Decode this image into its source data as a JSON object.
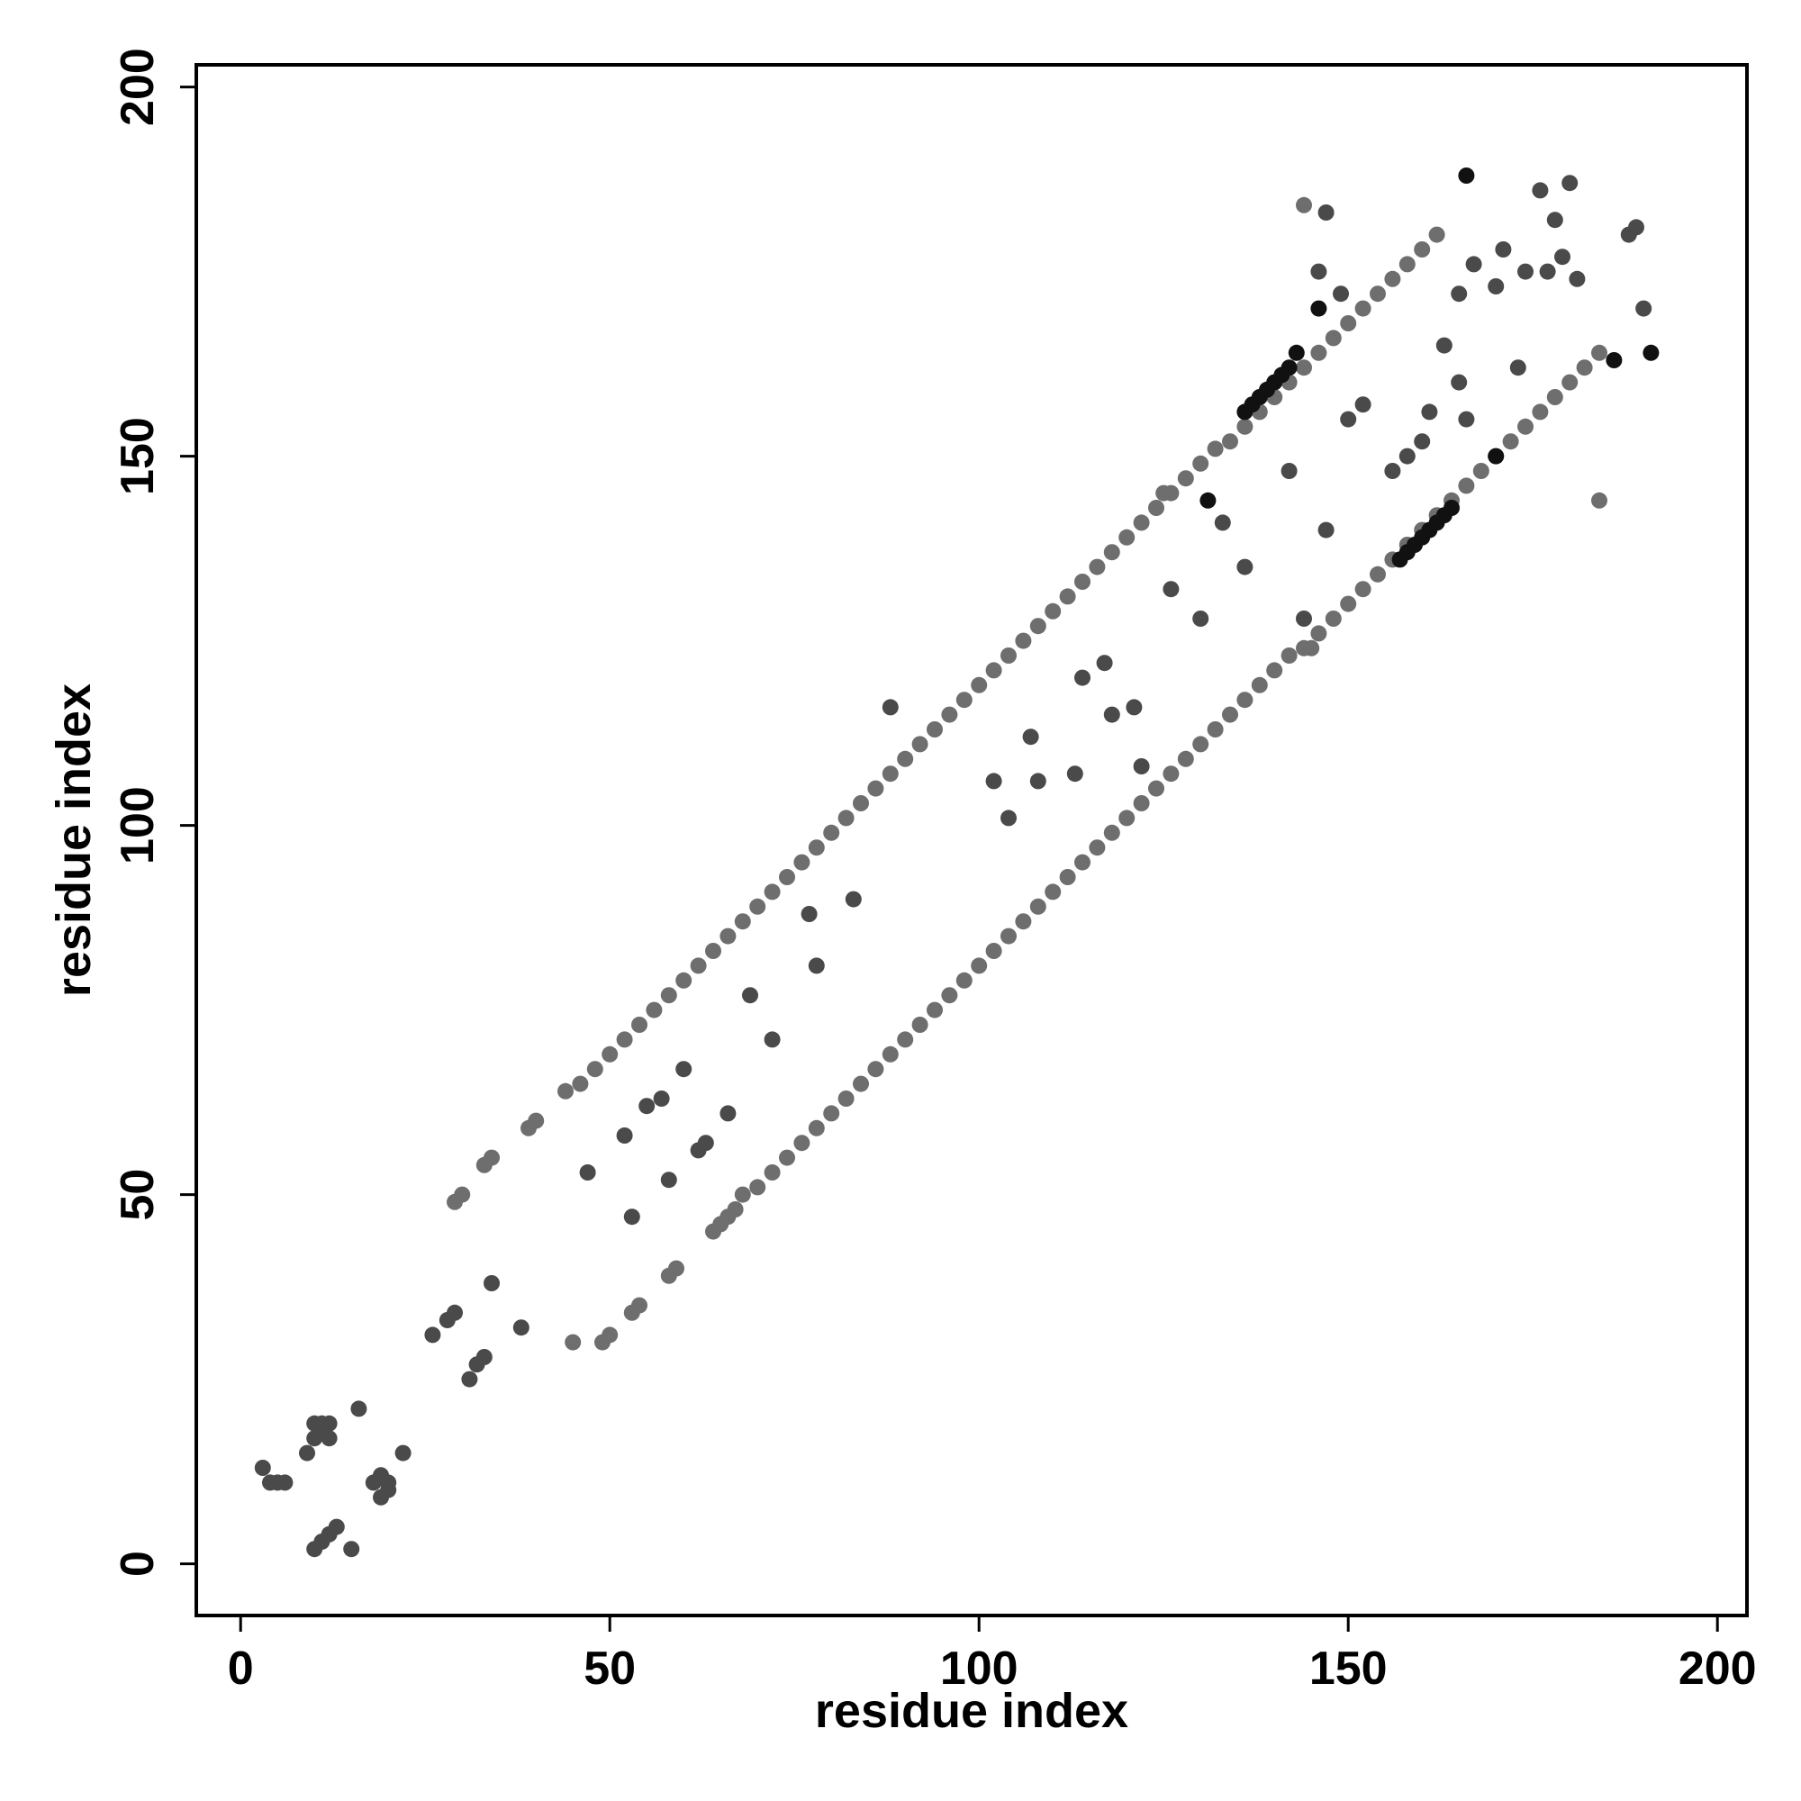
{
  "chart_data": {
    "type": "scatter",
    "title": "",
    "xlabel": "residue index",
    "ylabel": "residue index",
    "xlim": [
      -6,
      204
    ],
    "ylim": [
      -7,
      203
    ],
    "xticks": [
      0,
      50,
      100,
      150,
      200
    ],
    "yticks": [
      0,
      50,
      100,
      150,
      200
    ],
    "grid": false,
    "legend": "none",
    "colors": {
      "light": "#6e6e6e",
      "mid": "#4a4a4a",
      "dark": "#111111"
    },
    "series": [
      {
        "tone": "light",
        "x": [
          44,
          46,
          48,
          50,
          52,
          54,
          56,
          58,
          60,
          62,
          64,
          66,
          68,
          70,
          72,
          74,
          76,
          78,
          80,
          82,
          84,
          86,
          88,
          90,
          92,
          94,
          96,
          98,
          100,
          102,
          104,
          106,
          108,
          110,
          112,
          114,
          116,
          118,
          120,
          122,
          124,
          126,
          128,
          130,
          132,
          134,
          136,
          138,
          140,
          142,
          144,
          146,
          148,
          150,
          152,
          154,
          156,
          158,
          160,
          162,
          29,
          30,
          33,
          34,
          39,
          40,
          45,
          49,
          50,
          53,
          54,
          58,
          59,
          64,
          65,
          66,
          67,
          68,
          70,
          72,
          74,
          76,
          78,
          80,
          82,
          84,
          86,
          88,
          90,
          92,
          94,
          96,
          98,
          100,
          102,
          104,
          106,
          108,
          110,
          112,
          114,
          116,
          118,
          120,
          122,
          124,
          126,
          128,
          130,
          132,
          134,
          136,
          138,
          140,
          142,
          144,
          146,
          148,
          150,
          152,
          154,
          156,
          158,
          160,
          162,
          164,
          166,
          168,
          170,
          172,
          174,
          176,
          178,
          180,
          182,
          184,
          144,
          184,
          145,
          125
        ],
        "y": [
          64,
          65,
          67,
          69,
          71,
          73,
          75,
          77,
          79,
          81,
          83,
          85,
          87,
          89,
          91,
          93,
          95,
          97,
          99,
          101,
          103,
          105,
          107,
          109,
          111,
          113,
          115,
          117,
          119,
          121,
          123,
          125,
          127,
          129,
          131,
          133,
          135,
          137,
          139,
          141,
          143,
          145,
          147,
          149,
          151,
          152,
          154,
          156,
          158,
          160,
          162,
          164,
          166,
          168,
          170,
          172,
          174,
          176,
          178,
          180,
          49,
          50,
          54,
          55,
          59,
          60,
          30,
          30,
          31,
          34,
          35,
          39,
          40,
          45,
          46,
          47,
          48,
          50,
          51,
          53,
          55,
          57,
          59,
          61,
          63,
          65,
          67,
          69,
          71,
          73,
          75,
          77,
          79,
          81,
          83,
          85,
          87,
          89,
          91,
          93,
          95,
          97,
          99,
          101,
          103,
          105,
          107,
          109,
          111,
          113,
          115,
          117,
          119,
          121,
          123,
          124,
          126,
          128,
          130,
          132,
          134,
          136,
          138,
          140,
          142,
          144,
          146,
          148,
          150,
          152,
          154,
          156,
          158,
          160,
          162,
          164,
          184,
          144,
          124,
          145
        ]
      },
      {
        "tone": "mid",
        "x": [
          3,
          4,
          5,
          6,
          10,
          11,
          12,
          10,
          9,
          11,
          12,
          16,
          18,
          19,
          20,
          19,
          20,
          22,
          10,
          11,
          12,
          13,
          15,
          26,
          28,
          29,
          31,
          32,
          33,
          34,
          38,
          47,
          52,
          53,
          55,
          57,
          58,
          60,
          62,
          63,
          66,
          69,
          72,
          77,
          78,
          83,
          88,
          102,
          104,
          107,
          108,
          113,
          114,
          117,
          118,
          121,
          122,
          126,
          130,
          133,
          136,
          142,
          144,
          147,
          150,
          152,
          156,
          158,
          160,
          161,
          163,
          165,
          167,
          170,
          171,
          173,
          174,
          178,
          179,
          180,
          181,
          188,
          189,
          190,
          165,
          166,
          176,
          177,
          146,
          147,
          149
        ],
        "y": [
          13,
          11,
          11,
          11,
          17,
          18,
          17,
          19,
          15,
          19,
          19,
          21,
          11,
          12,
          11,
          9,
          10,
          15,
          2,
          3,
          4,
          5,
          2,
          31,
          33,
          34,
          25,
          27,
          28,
          38,
          32,
          53,
          58,
          47,
          62,
          63,
          52,
          67,
          56,
          57,
          61,
          77,
          71,
          88,
          81,
          90,
          116,
          106,
          101,
          112,
          106,
          107,
          120,
          122,
          115,
          116,
          108,
          132,
          128,
          141,
          135,
          148,
          128,
          140,
          155,
          157,
          148,
          150,
          152,
          156,
          165,
          172,
          176,
          173,
          178,
          162,
          175,
          182,
          177,
          187,
          174,
          180,
          181,
          170,
          160,
          155,
          186,
          175,
          175,
          183,
          172
        ]
      },
      {
        "tone": "dark",
        "x": [
          136,
          137,
          138,
          139,
          140,
          141,
          142,
          143,
          157,
          158,
          159,
          160,
          161,
          162,
          163,
          164,
          131,
          146,
          166,
          170,
          186,
          191
        ],
        "y": [
          156,
          157,
          158,
          159,
          160,
          161,
          162,
          164,
          136,
          137,
          138,
          139,
          140,
          141,
          142,
          143,
          144,
          170,
          188,
          150,
          163,
          164
        ]
      }
    ]
  }
}
